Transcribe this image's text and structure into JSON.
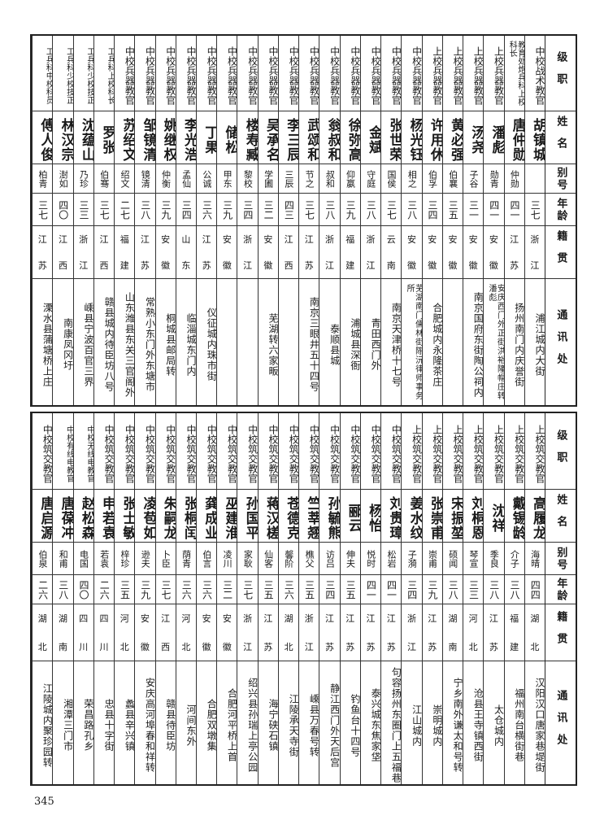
{
  "headers": {
    "rank": "级职",
    "name": "姓名",
    "alias": "别号",
    "age": "年龄",
    "native": "籍贯",
    "address": "通讯处"
  },
  "top_table": [
    {
      "rank": "中校战术教官",
      "name": "胡镇城",
      "alias": "",
      "age": "三七",
      "native": [
        "浙",
        "江"
      ],
      "address": "浦江城内大街"
    },
    {
      "rank": "教育处炮兵科上校科长",
      "name": "唐仲勋",
      "alias": "仲勋",
      "age": "四一",
      "native": [
        "江",
        "苏"
      ],
      "address": "扬州南门内庆誉街"
    },
    {
      "rank": "上校兵器教官",
      "name": "潘彪",
      "alias": "勋青",
      "age": "四一",
      "native": [
        "安",
        "徽"
      ],
      "address": "安庆西门外正街洪裕隆帽庄转潘彪"
    },
    {
      "rank": "上校兵器教官",
      "name": "汤尧",
      "alias": "子谷",
      "age": "三一",
      "native": [
        "安",
        "徽"
      ],
      "address": "南京国府东街陶公祠内"
    },
    {
      "rank": "上校兵器教官",
      "name": "黄必强",
      "alias": "伯襄",
      "age": "三五",
      "native": [
        "安",
        "徽"
      ],
      "address": ""
    },
    {
      "rank": "上校兵器教官",
      "name": "许用休",
      "alias": "伯孚",
      "age": "三四",
      "native": [
        "安",
        "徽"
      ],
      "address": "合肥城内永隆茶庄"
    },
    {
      "rank": "中校兵器教官",
      "name": "杨光钰",
      "alias": "相之",
      "age": "三八",
      "native": [
        "安",
        "徽"
      ],
      "address": "芜湖南门儒林街陈沅律师事务所"
    },
    {
      "rank": "中校兵器教官",
      "name": "张世荣",
      "alias": "国侯",
      "age": "三七",
      "native": [
        "云",
        "南"
      ],
      "address": "南京天津桥十七号"
    },
    {
      "rank": "中校兵器教官",
      "name": "金斌",
      "alias": "守庭",
      "age": "三八",
      "native": [
        "浙",
        "江"
      ],
      "address": "青田西门外"
    },
    {
      "rank": "中校兵器教官",
      "name": "徐弥高",
      "alias": "仰嬴",
      "age": "三九",
      "native": [
        "福",
        "建"
      ],
      "address": "浦城县深衙"
    },
    {
      "rank": "中校兵器教官",
      "name": "翁叔和",
      "alias": "叔和",
      "age": "三八",
      "native": [
        "浙",
        "江"
      ],
      "address": "泰顺县城"
    },
    {
      "rank": "中校兵器教官",
      "name": "武颂和",
      "alias": "节之",
      "age": "三七",
      "native": [
        "江",
        "苏"
      ],
      "address": "南京三眼井五十四号"
    },
    {
      "rank": "中校兵器教官",
      "name": "李三辰",
      "alias": "三辰",
      "age": "四三",
      "native": [
        "江",
        "西"
      ],
      "address": ""
    },
    {
      "rank": "中校兵器教官",
      "name": "吴承名",
      "alias": "学圃",
      "age": "三二",
      "native": [
        "安",
        "徽"
      ],
      "address": "芜湖转六家畈"
    },
    {
      "rank": "中校兵器教官",
      "name": "楼寿臧",
      "alias": "黎校",
      "age": "三四",
      "native": [
        "浙",
        "江"
      ],
      "address": ""
    },
    {
      "rank": "中校兵器教官",
      "name": "储松",
      "alias": "甲东",
      "age": "三九",
      "native": [
        "安",
        "徽"
      ],
      "address": ""
    },
    {
      "rank": "中校兵器教官",
      "name": "丁果",
      "alias": "公诚",
      "age": "三六",
      "native": [
        "江",
        "苏"
      ],
      "address": "仪征城内珠市街"
    },
    {
      "rank": "中校兵器教官",
      "name": "李光浩",
      "alias": "孟仙",
      "age": "三四",
      "native": [
        "山",
        "东"
      ],
      "address": "临淄城东门内"
    },
    {
      "rank": "中校兵器教官",
      "name": "姚继权",
      "alias": "仲衡",
      "age": "三九",
      "native": [
        "安",
        "徽"
      ],
      "address": "桐城县邮局转"
    },
    {
      "rank": "中校兵器教官",
      "name": "邹镜清",
      "alias": "镜清",
      "age": "三八",
      "native": [
        "江",
        "苏"
      ],
      "address": "常熟小东门外东塘市"
    },
    {
      "rank": "中校兵器教官",
      "name": "苏绍文",
      "alias": "绍文",
      "age": "二七",
      "native": [
        "福",
        "建"
      ],
      "address": "山东潍县东关三官阁外"
    },
    {
      "rank": "工兵科上校科长",
      "name": "罗张",
      "alias": "伯骞",
      "age": "三七",
      "native": [
        "江",
        "西"
      ],
      "address": "赣县城内待臣坊八号"
    },
    {
      "rank": "工兵科少校技正",
      "name": "沈蕴山",
      "alias": "乃珍",
      "age": "三三",
      "native": [
        "浙",
        "江"
      ],
      "address": "嵊县宁波百官三界"
    },
    {
      "rank": "工兵科少校技正",
      "name": "林汉宗",
      "alias": "澍如",
      "age": "四〇",
      "native": [
        "江",
        "西"
      ],
      "address": "南康凤冈圩"
    },
    {
      "rank": "工兵科中校科员",
      "name": "傅人俊",
      "alias": "柏青",
      "age": "三七",
      "native": [
        "江",
        "苏"
      ],
      "address": "溧水县蒲塘桥上庄"
    }
  ],
  "bottom_table": [
    {
      "rank": "上校筑交教官",
      "name": "高履龙",
      "alias": "海晴",
      "age": "四四",
      "native": [
        "湖",
        "北"
      ],
      "address": "汉阳汉口唐家巷堤街"
    },
    {
      "rank": "上校筑交教官",
      "name": "戴锡龄",
      "alias": "介子",
      "age": "三八",
      "native": [
        "福",
        "建"
      ],
      "address": "福州南台横街巷"
    },
    {
      "rank": "上校筑交教官",
      "name": "沈祥",
      "alias": "季良",
      "age": "三八",
      "native": [
        "江",
        "苏"
      ],
      "address": "太仓城内"
    },
    {
      "rank": "上校筑交教官",
      "name": "刘桐恩",
      "alias": "琴宣",
      "age": "三三",
      "native": [
        "河",
        "北"
      ],
      "address": "沧县王寺镇西街"
    },
    {
      "rank": "上校筑交教官",
      "name": "宋振堃",
      "alias": "硕闻",
      "age": "三八",
      "native": [
        "湖",
        "南"
      ],
      "address": "宁乡南外谦太和号转"
    },
    {
      "rank": "上校筑交教官",
      "name": "张崇甫",
      "alias": "崇甫",
      "age": "三九",
      "native": [
        "江",
        "苏"
      ],
      "address": "崇明城内"
    },
    {
      "rank": "上校筑交教官",
      "name": "姜水纹",
      "alias": "子漪",
      "age": "三四",
      "native": [
        "浙",
        "江"
      ],
      "address": "江山城内"
    },
    {
      "rank": "中校筑交教官",
      "name": "刘贵璋",
      "alias": "松岩",
      "age": "四一",
      "native": [
        "江",
        "苏"
      ],
      "address": "句容扬州东圈门上五福巷"
    },
    {
      "rank": "中校筑交教官",
      "name": "杨怡",
      "alias": "悦时",
      "age": "四一",
      "native": [
        "江",
        "苏"
      ],
      "address": "泰兴城东焦家垡"
    },
    {
      "rank": "中校筑交教官",
      "name": "郦云",
      "alias": "伸夫",
      "age": "三五",
      "native": [
        "江",
        "苏"
      ],
      "address": "钓鱼台十四号"
    },
    {
      "rank": "中校筑交教官",
      "name": "孙毓熊",
      "alias": "访吕",
      "age": "三四",
      "native": [
        "江",
        "苏"
      ],
      "address": "静江西门外天后宫"
    },
    {
      "rank": "中校筑交教官",
      "name": "竺莘翘",
      "alias": "樵父",
      "age": "三五",
      "native": [
        "浙",
        "江"
      ],
      "address": "嵊县万春号转"
    },
    {
      "rank": "中校筑交教官",
      "name": "苍德克",
      "alias": "馨阶",
      "age": "三六",
      "native": [
        "湖",
        "北"
      ],
      "address": "江陵承天寺街"
    },
    {
      "rank": "中校筑交教官",
      "name": "蒋汉槎",
      "alias": "仙客",
      "age": "三五",
      "native": [
        "江",
        "苏"
      ],
      "address": "海宁硖石镇"
    },
    {
      "rank": "中校筑交教官",
      "name": "孙国平",
      "alias": "家耿",
      "age": "三七",
      "native": [
        "浙",
        "江"
      ],
      "address": "绍兴县孙瑞上亭公园"
    },
    {
      "rank": "中校筑交教官",
      "name": "巫建淮",
      "alias": "凌川",
      "age": "三二",
      "native": [
        "安",
        "徽"
      ],
      "address": "合肥河平桥上首"
    },
    {
      "rank": "中校筑交教官",
      "name": "龚成业",
      "alias": "伯言",
      "age": "三六",
      "native": [
        "安",
        "徽"
      ],
      "address": "合肥双墩集"
    },
    {
      "rank": "中校筑交教官",
      "name": "张桐闰",
      "alias": "荫青",
      "age": "三六",
      "native": [
        "河",
        "北"
      ],
      "address": "河间东外"
    },
    {
      "rank": "中校筑交教官",
      "name": "朱嗣龙",
      "alias": "卜臣",
      "age": "三七",
      "native": [
        "江",
        "西"
      ],
      "address": "赣县待臣坊"
    },
    {
      "rank": "中校筑交教官",
      "name": "凌苞如",
      "alias": "逊夫",
      "age": "三九",
      "native": [
        "安",
        "徽"
      ],
      "address": "安庆高河埠春和祥转"
    },
    {
      "rank": "中校筑交教官",
      "name": "张士敏",
      "alias": "梓珍",
      "age": "三五",
      "native": [
        "河",
        "北"
      ],
      "address": "蠡县辛兴镇"
    },
    {
      "rank": "中校筑交教官",
      "name": "申若袁",
      "alias": "若袁",
      "age": "二六",
      "native": [
        "四",
        "川"
      ],
      "address": "忠县十字街"
    },
    {
      "rank": "中校无线电教官",
      "name": "赵松森",
      "alias": "电国",
      "age": "四〇",
      "native": [
        "四",
        "川"
      ],
      "address": "荣昌路孔乡"
    },
    {
      "rank": "中校有线电教官",
      "name": "唐葆冲",
      "alias": "和甫",
      "age": "三八",
      "native": [
        "湖",
        "南"
      ],
      "address": "湘潭三门市"
    },
    {
      "rank": "中校筑交教官",
      "name": "唐启源",
      "alias": "伯泉",
      "age": "二六",
      "native": [
        "湖",
        "北"
      ],
      "address": "江陵城内聚珍园转"
    }
  ],
  "page_number": "345"
}
